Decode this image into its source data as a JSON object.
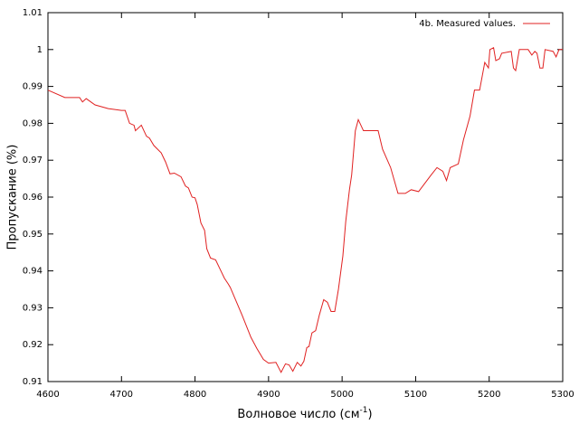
{
  "chart_data": {
    "type": "line",
    "x_label": {
      "text": "Волновое число (см",
      "superscript": "-1",
      "closing": ")"
    },
    "y_label": "Пропускание (%)",
    "series": [
      {
        "name": "4b. Measured values.",
        "color": "#e02020",
        "x": [
          4600,
          4623,
          4643,
          4647,
          4652,
          4664,
          4682,
          4700,
          4705,
          4711,
          4717,
          4719,
          4727,
          4734,
          4738,
          4744,
          4754,
          4760,
          4766,
          4772,
          4781,
          4787,
          4791,
          4796,
          4800,
          4803,
          4808,
          4813,
          4816,
          4821,
          4828,
          4834,
          4840,
          4845,
          4848,
          4864,
          4876,
          4884,
          4893,
          4900,
          4910,
          4917,
          4923,
          4928,
          4933,
          4939,
          4944,
          4948,
          4952,
          4955,
          4959,
          4964,
          4969,
          4975,
          4980,
          4985,
          4990,
          4995,
          5001,
          5005,
          5010,
          5013,
          5018,
          5022,
          5029,
          5049,
          5055,
          5066,
          5076,
          5086,
          5094,
          5104,
          5121,
          5129,
          5137,
          5142,
          5147,
          5158,
          5165,
          5174,
          5180,
          5187,
          5194,
          5199,
          5201,
          5206,
          5209,
          5214,
          5217,
          5230,
          5233,
          5236,
          5241,
          5253,
          5258,
          5262,
          5265,
          5269,
          5273,
          5276,
          5287,
          5291,
          5295,
          5300
        ],
        "values": [
          0.989,
          0.987,
          0.987,
          0.9858,
          0.9867,
          0.985,
          0.984,
          0.9835,
          0.9835,
          0.98,
          0.9795,
          0.978,
          0.9795,
          0.9765,
          0.976,
          0.974,
          0.972,
          0.9695,
          0.9663,
          0.9665,
          0.9655,
          0.963,
          0.9625,
          0.96,
          0.9598,
          0.958,
          0.953,
          0.951,
          0.946,
          0.9435,
          0.943,
          0.9405,
          0.938,
          0.9365,
          0.9355,
          0.928,
          0.922,
          0.919,
          0.916,
          0.915,
          0.9152,
          0.9125,
          0.9148,
          0.9145,
          0.9128,
          0.9152,
          0.9142,
          0.9155,
          0.9192,
          0.9195,
          0.9232,
          0.9238,
          0.928,
          0.9322,
          0.9315,
          0.929,
          0.929,
          0.935,
          0.944,
          0.9535,
          0.962,
          0.966,
          0.978,
          0.981,
          0.978,
          0.978,
          0.973,
          0.968,
          0.961,
          0.961,
          0.962,
          0.9615,
          0.966,
          0.968,
          0.967,
          0.9645,
          0.968,
          0.969,
          0.9755,
          0.982,
          0.989,
          0.989,
          0.9965,
          0.995,
          1.0,
          1.0005,
          0.997,
          0.9975,
          0.999,
          0.9995,
          0.995,
          0.9943,
          1.0,
          1.0,
          0.9985,
          0.9995,
          0.999,
          0.995,
          0.995,
          1.0,
          0.9995,
          0.998,
          1.0,
          1.0
        ]
      }
    ],
    "xlim": [
      4600,
      5300
    ],
    "xticks": [
      4600,
      4700,
      4800,
      4900,
      5000,
      5100,
      5200,
      5300
    ],
    "ylim": [
      0.91,
      1.01
    ],
    "yticks": [
      0.91,
      0.92,
      0.93,
      0.94,
      0.95,
      0.96,
      0.97,
      0.98,
      0.99,
      1,
      1.01
    ],
    "legend": "top-right",
    "grid": false
  }
}
